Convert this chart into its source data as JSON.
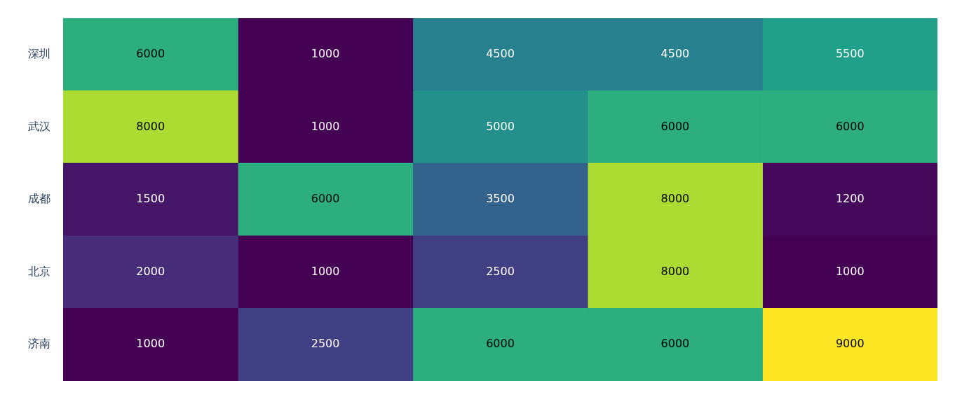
{
  "chart_data": {
    "type": "heatmap",
    "categories": [
      null,
      null,
      null,
      null,
      null
    ],
    "y_categories": [
      "深圳",
      "武汉",
      "成都",
      "北京",
      "济南"
    ],
    "cells": [
      [
        6000,
        1000,
        4500,
        4500,
        5500
      ],
      [
        8000,
        1000,
        5000,
        6000,
        6000
      ],
      [
        1500,
        6000,
        3500,
        8000,
        1200
      ],
      [
        2000,
        1000,
        2500,
        8000,
        1000
      ],
      [
        1000,
        2500,
        6000,
        6000,
        9000
      ]
    ],
    "data_labels": true,
    "tick_labels": "y",
    "legend": false
  }
}
